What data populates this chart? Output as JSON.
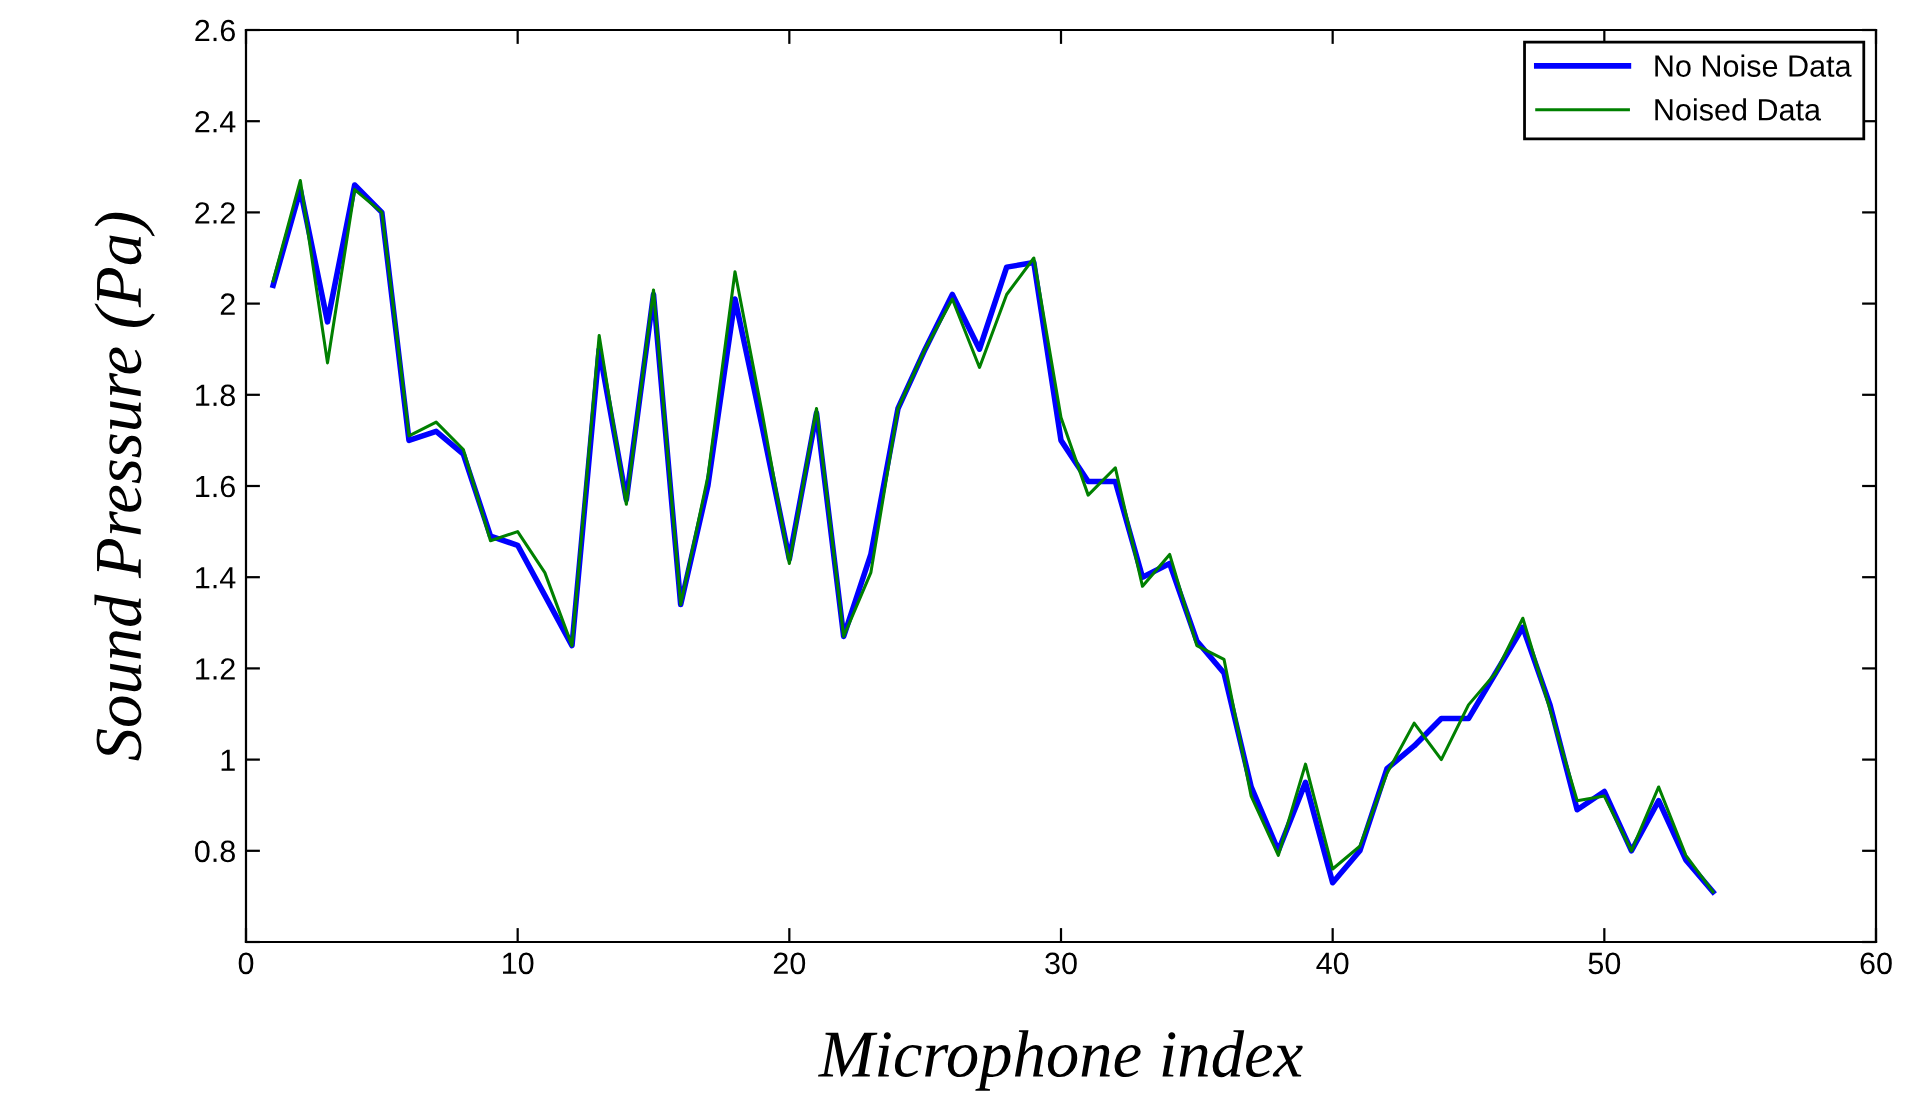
{
  "chart_data": {
    "type": "line",
    "xlabel": "Microphone index",
    "ylabel": "Sound Pressure (Pa)",
    "x": [
      1,
      2,
      3,
      4,
      5,
      6,
      7,
      8,
      9,
      10,
      11,
      12,
      13,
      14,
      15,
      16,
      17,
      18,
      19,
      20,
      21,
      22,
      23,
      24,
      25,
      26,
      27,
      28,
      29,
      30,
      31,
      32,
      33,
      34,
      35,
      36,
      37,
      38,
      39,
      40,
      41,
      42,
      43,
      44,
      45,
      46,
      47,
      48,
      49,
      50,
      51,
      52,
      53,
      54
    ],
    "series": [
      {
        "name": "No Noise Data",
        "color": "#0000ff",
        "values": [
          2.04,
          2.25,
          1.96,
          2.26,
          2.2,
          1.7,
          1.72,
          1.67,
          1.49,
          1.47,
          1.36,
          1.25,
          1.9,
          1.57,
          2.02,
          1.34,
          1.6,
          2.01,
          1.73,
          1.44,
          1.76,
          1.27,
          1.45,
          1.77,
          1.9,
          2.02,
          1.9,
          2.08,
          2.09,
          1.7,
          1.61,
          1.61,
          1.4,
          1.43,
          1.26,
          1.19,
          0.94,
          0.8,
          0.95,
          0.73,
          0.8,
          0.98,
          1.03,
          1.09,
          1.09,
          1.19,
          1.29,
          1.12,
          0.89,
          0.93,
          0.8,
          0.91,
          0.78,
          0.71
        ]
      },
      {
        "name": "Noised Data",
        "color": "#008000",
        "values": [
          2.05,
          2.27,
          1.87,
          2.25,
          2.2,
          1.71,
          1.74,
          1.68,
          1.48,
          1.5,
          1.41,
          1.25,
          1.93,
          1.56,
          2.03,
          1.34,
          1.62,
          2.07,
          1.76,
          1.43,
          1.77,
          1.27,
          1.41,
          1.77,
          1.9,
          2.01,
          1.86,
          2.02,
          2.1,
          1.75,
          1.58,
          1.64,
          1.38,
          1.45,
          1.25,
          1.22,
          0.92,
          0.79,
          0.99,
          0.76,
          0.81,
          0.97,
          1.08,
          1.0,
          1.12,
          1.19,
          1.31,
          1.11,
          0.91,
          0.92,
          0.8,
          0.94,
          0.79,
          0.71
        ]
      }
    ],
    "xlim": [
      0,
      60
    ],
    "xticks": [
      0,
      10,
      20,
      30,
      40,
      50,
      60
    ],
    "ylim": [
      0.6,
      2.6
    ],
    "yticks": [
      {
        "value": 0.6,
        "label": null
      },
      0.8,
      1,
      1.2,
      1.4,
      1.6,
      1.8,
      2,
      2.2,
      2.4,
      2.6
    ],
    "legend": "top right",
    "grid": false,
    "marker": "none",
    "line_style": "solid"
  }
}
